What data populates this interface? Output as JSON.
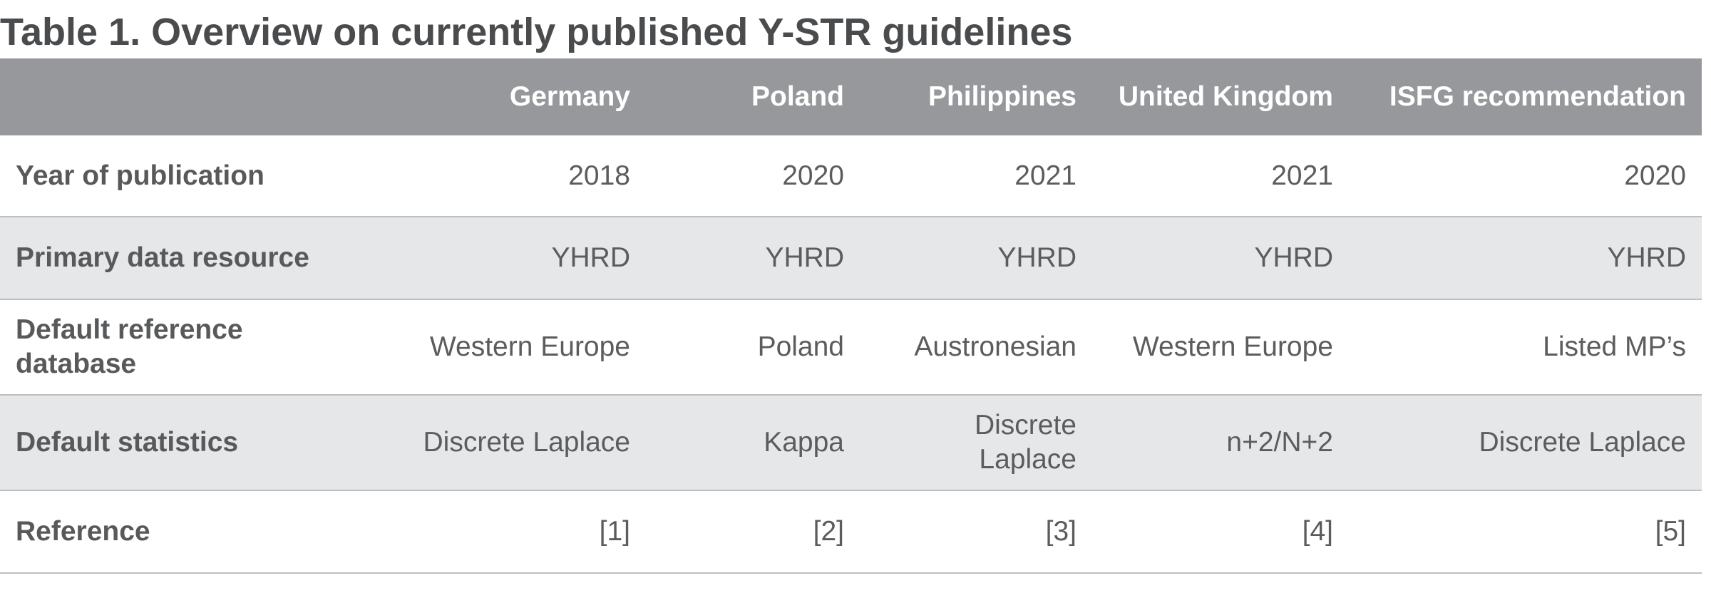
{
  "title": "Table 1. Overview on currently published Y-STR guidelines",
  "columns": [
    "",
    "Germany",
    "Poland",
    "Philippines",
    "United Kingdom",
    "ISFG recommendation"
  ],
  "rows": [
    {
      "label": "Year of publication",
      "cells": [
        "2018",
        "2020",
        "2021",
        "2021",
        "2020"
      ]
    },
    {
      "label": "Primary data resource",
      "cells": [
        "YHRD",
        "YHRD",
        "YHRD",
        "YHRD",
        "YHRD"
      ]
    },
    {
      "label": "Default reference database",
      "cells": [
        "Western Europe",
        "Poland",
        "Austronesian",
        "Western Europe",
        "Listed MP’s"
      ]
    },
    {
      "label": "Default statistics",
      "cells": [
        "Discrete Laplace",
        "Kappa",
        "Discrete Laplace",
        "n+2/N+2",
        "Discrete Laplace"
      ]
    },
    {
      "label": "Reference",
      "cells": [
        "[1]",
        "[2]",
        "[3]",
        "[4]",
        "[5]"
      ]
    }
  ],
  "colors": {
    "header_bg": "#97989b",
    "header_text": "#ffffff",
    "alt_row_bg": "#e6e7e9",
    "text": "#555759"
  }
}
